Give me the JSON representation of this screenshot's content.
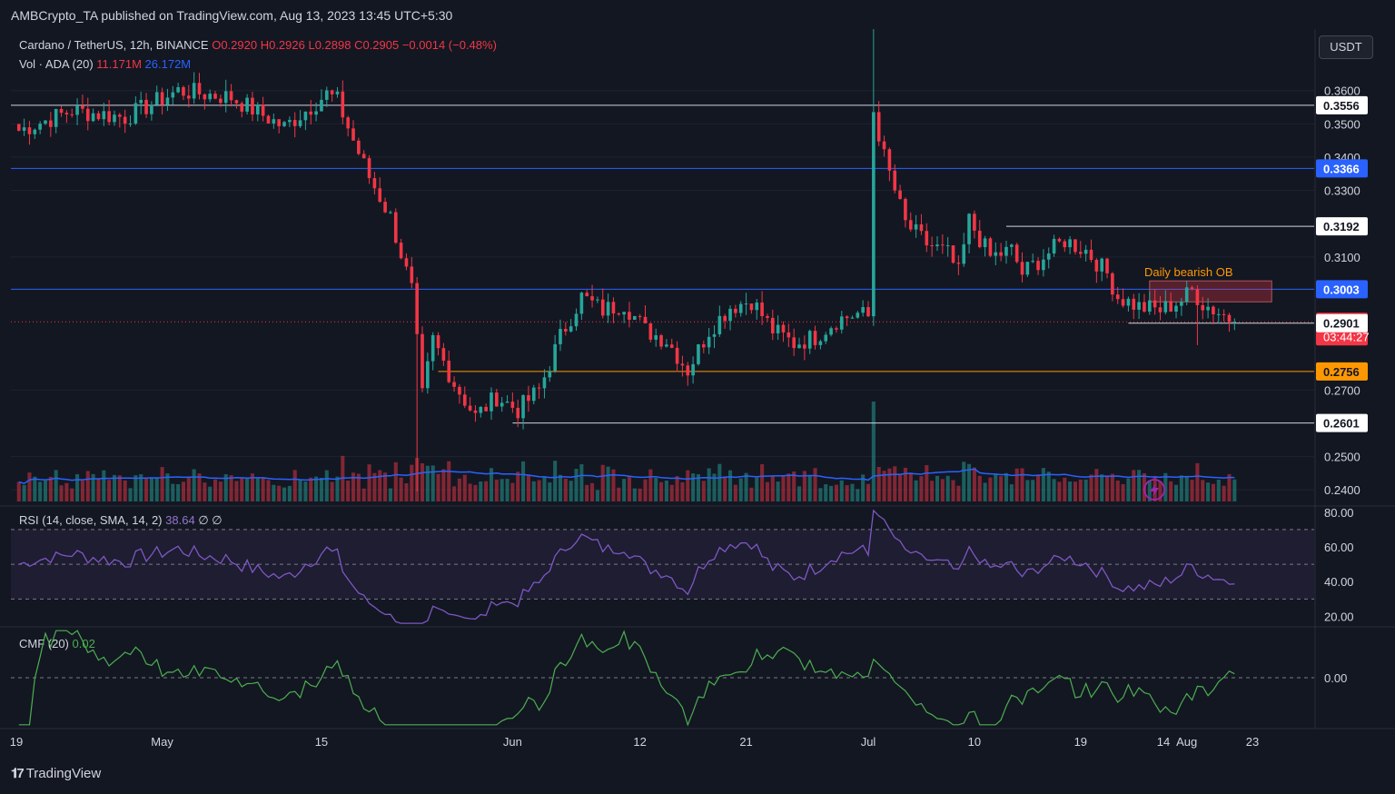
{
  "publish_line": "AMBCrypto_TA published on TradingView.com, Aug 13, 2023 13:45 UTC+5:30",
  "legend": {
    "symbol": "Cardano / TetherUS, 12h, BINANCE",
    "ohlc": "O0.2920 H0.2926 L0.2898 C0.2905 −0.0014 (−0.48%)",
    "volume_label": "Vol · ADA (20)",
    "volume_value": "11.171M",
    "volume_ma": "26.172M"
  },
  "rsi_legend": {
    "label": "RSI (14, close, SMA, 14, 2)",
    "value": "38.64",
    "extra": "∅ ∅"
  },
  "cmf_legend": {
    "label": "CMF (20)",
    "value": "0.02"
  },
  "unit_badge": "USDT",
  "brand": "TradingView",
  "colors": {
    "up": "#26a69a",
    "down": "#f23645",
    "background": "#131722",
    "rsi": "#7e57c2",
    "cmf": "#4caf50",
    "vol_ma": "#2962ff",
    "orange": "#ff9800",
    "blue_level": "#2962ff"
  },
  "icons": [
    "tradingview-logo-icon",
    "lightning-icon"
  ],
  "chart_data": [
    {
      "type": "candlestick",
      "title": "Cardano / TetherUS, 12h, BINANCE",
      "y_axis": {
        "ticks": [
          "0.3600",
          "0.3500",
          "0.3400",
          "0.3300",
          "0.3100",
          "0.2700",
          "0.2500",
          "0.2400"
        ],
        "range": [
          0.2365,
          0.3785
        ]
      },
      "x_axis": {
        "ticks": [
          "19",
          "May",
          "15",
          "Jun",
          "12",
          "21",
          "Jul",
          "10",
          "19",
          "Aug",
          "14",
          "23"
        ]
      },
      "levels": [
        {
          "label": "0.3556",
          "value": 0.3556,
          "kind": "white"
        },
        {
          "label": "0.3366",
          "value": 0.3366,
          "kind": "blue"
        },
        {
          "label": "0.3192",
          "value": 0.3192,
          "kind": "white"
        },
        {
          "label": "0.3003",
          "value": 0.3003,
          "kind": "blue"
        },
        {
          "label": "0.2905",
          "value": 0.2905,
          "kind": "price",
          "countdown": "03:44:27"
        },
        {
          "label": "0.2901",
          "value": 0.2901,
          "kind": "white"
        },
        {
          "label": "0.2756",
          "value": 0.2756,
          "kind": "orange"
        },
        {
          "label": "0.2601",
          "value": 0.2601,
          "kind": "white"
        }
      ],
      "annotation": {
        "text": "Daily bearish OB",
        "top": 0.3028,
        "bottom": 0.2965
      },
      "anchors": [
        [
          0,
          0.348
        ],
        [
          10,
          0.354
        ],
        [
          20,
          0.352
        ],
        [
          30,
          0.36
        ],
        [
          40,
          0.358
        ],
        [
          50,
          0.349
        ],
        [
          58,
          0.359
        ],
        [
          60,
          0.357
        ],
        [
          63,
          0.345
        ],
        [
          66,
          0.334
        ],
        [
          70,
          0.322
        ],
        [
          74,
          0.3
        ],
        [
          76,
          0.268
        ],
        [
          78,
          0.285
        ],
        [
          82,
          0.272
        ],
        [
          86,
          0.262
        ],
        [
          90,
          0.268
        ],
        [
          94,
          0.264
        ],
        [
          98,
          0.27
        ],
        [
          102,
          0.286
        ],
        [
          106,
          0.298
        ],
        [
          110,
          0.294
        ],
        [
          114,
          0.296
        ],
        [
          118,
          0.288
        ],
        [
          122,
          0.285
        ],
        [
          126,
          0.276
        ],
        [
          130,
          0.288
        ],
        [
          134,
          0.295
        ],
        [
          138,
          0.297
        ],
        [
          142,
          0.288
        ],
        [
          146,
          0.284
        ],
        [
          150,
          0.286
        ],
        [
          154,
          0.291
        ],
        [
          158,
          0.293
        ],
        [
          160,
          0.292
        ],
        [
          161,
          0.354
        ],
        [
          163,
          0.34
        ],
        [
          167,
          0.32
        ],
        [
          171,
          0.314
        ],
        [
          175,
          0.311
        ],
        [
          177,
          0.305
        ],
        [
          179,
          0.321
        ],
        [
          183,
          0.31
        ],
        [
          187,
          0.312
        ],
        [
          189,
          0.305
        ],
        [
          193,
          0.31
        ],
        [
          197,
          0.315
        ],
        [
          201,
          0.312
        ],
        [
          205,
          0.305
        ],
        [
          207,
          0.298
        ],
        [
          211,
          0.295
        ],
        [
          215,
          0.294
        ],
        [
          219,
          0.297
        ],
        [
          221,
          0.3
        ],
        [
          223,
          0.296
        ],
        [
          227,
          0.2925
        ],
        [
          229,
          0.2905
        ]
      ],
      "candle_count": 230,
      "index_range": [
        -1.5,
        244.0
      ]
    },
    {
      "type": "bar",
      "title": "Vol · ADA (20)",
      "series": [
        {
          "name": "Vol · ADA (20)",
          "ma": "26.172M"
        }
      ]
    },
    {
      "type": "line",
      "title": "RSI (14, close, SMA, 14, 2)",
      "y_axis": {
        "ticks": [
          "80.00",
          "60.00",
          "40.00",
          "20.00"
        ],
        "range": [
          15,
          82
        ],
        "bands": [
          30,
          50,
          70
        ]
      },
      "series": [
        {
          "name": "RSI (14, close, SMA, 14, 2)",
          "last": 38.64
        }
      ]
    },
    {
      "type": "line",
      "title": "CMF (20)",
      "y_axis": {
        "ticks": [
          "0.00"
        ],
        "range": [
          -0.25,
          0.25
        ]
      },
      "series": [
        {
          "name": "CMF (20)",
          "last": 0.02
        }
      ]
    }
  ]
}
